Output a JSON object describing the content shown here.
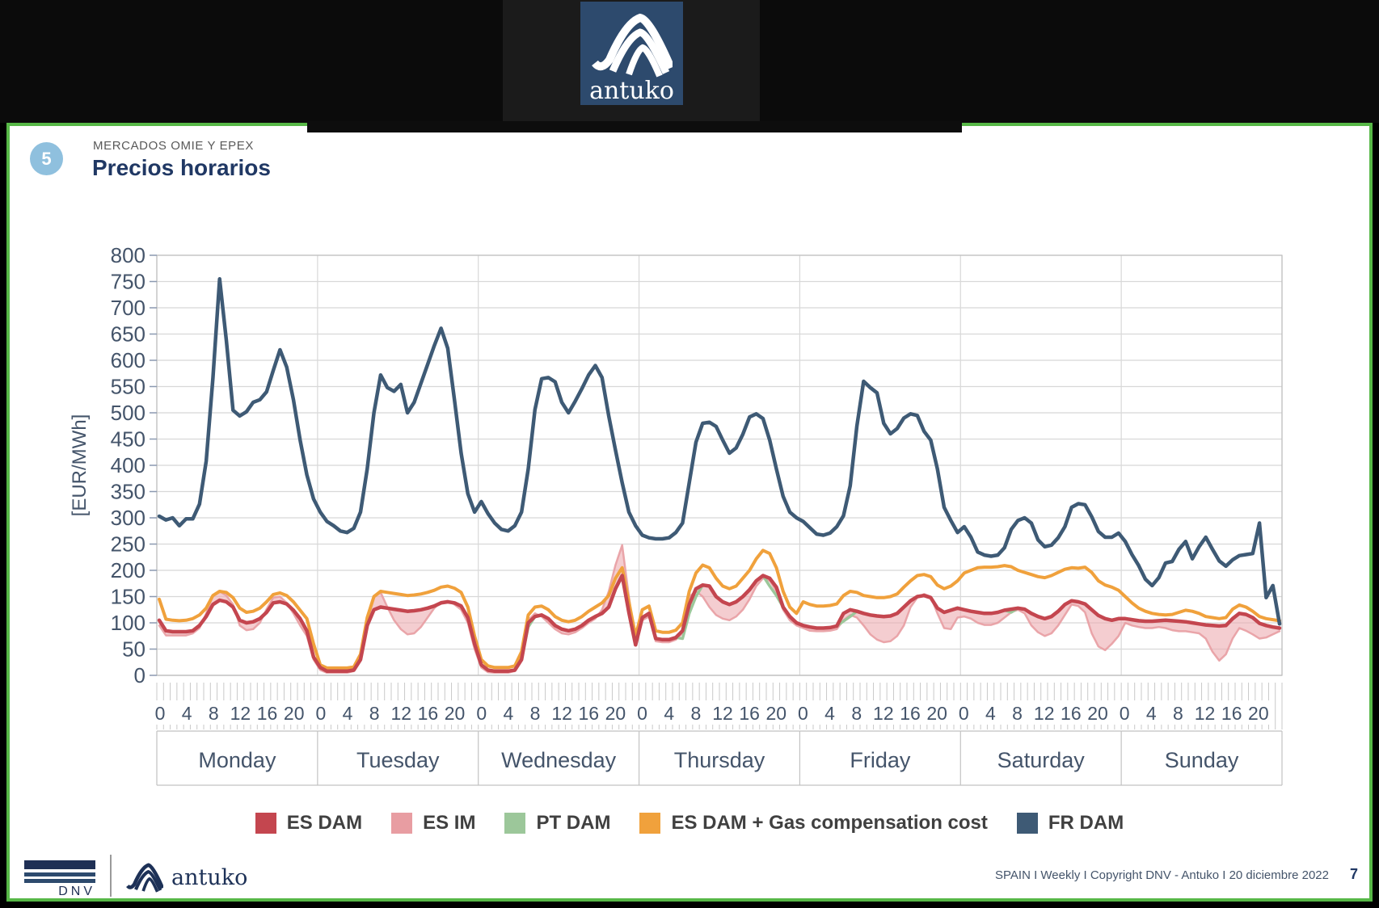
{
  "header": {
    "logo_text": "antuko"
  },
  "slide": {
    "number": "5",
    "kicker": "MERCADOS OMIE Y EPEX",
    "title": "Precios horarios"
  },
  "chart_data": {
    "type": "line",
    "title": "",
    "xlabel": "",
    "ylabel": "[EUR/MWh]",
    "ylim": [
      0,
      800
    ],
    "ytick_step": 50,
    "grid": true,
    "legend_position": "bottom",
    "days": [
      "Monday",
      "Tuesday",
      "Wednesday",
      "Thursday",
      "Friday",
      "Saturday",
      "Sunday"
    ],
    "hours_per_day": 24,
    "hour_tick_labels": [
      0,
      4,
      8,
      12,
      16,
      20
    ],
    "series": [
      {
        "name": "ES DAM",
        "color": "#c4464f",
        "values": [
          105,
          85,
          83,
          83,
          83,
          85,
          95,
          112,
          135,
          143,
          140,
          130,
          105,
          100,
          102,
          108,
          120,
          138,
          140,
          136,
          124,
          108,
          85,
          35,
          15,
          8,
          8,
          8,
          8,
          10,
          30,
          95,
          125,
          130,
          128,
          126,
          124,
          122,
          123,
          125,
          128,
          132,
          138,
          140,
          138,
          132,
          110,
          60,
          20,
          10,
          8,
          8,
          8,
          10,
          30,
          100,
          112,
          115,
          108,
          95,
          88,
          85,
          88,
          95,
          105,
          112,
          118,
          130,
          165,
          190,
          120,
          58,
          110,
          118,
          70,
          68,
          68,
          72,
          85,
          135,
          165,
          172,
          170,
          150,
          140,
          135,
          140,
          150,
          163,
          180,
          190,
          185,
          168,
          130,
          112,
          100,
          95,
          92,
          90,
          90,
          91,
          94,
          118,
          125,
          122,
          118,
          115,
          113,
          112,
          113,
          118,
          130,
          142,
          150,
          152,
          148,
          128,
          120,
          124,
          128,
          125,
          122,
          120,
          118,
          118,
          120,
          124,
          126,
          128,
          126,
          118,
          112,
          108,
          112,
          122,
          135,
          142,
          140,
          136,
          125,
          114,
          108,
          105,
          108,
          108,
          106,
          104,
          103,
          103,
          104,
          105,
          104,
          103,
          102,
          100,
          98,
          96,
          95,
          94,
          95,
          108,
          118,
          116,
          110,
          99,
          95,
          92,
          90
        ]
      },
      {
        "name": "ES IM",
        "color": "#e89da2",
        "band_fill": "#edacb0",
        "band_with": "ES DAM",
        "values": [
          95,
          76,
          76,
          76,
          76,
          80,
          90,
          118,
          152,
          160,
          152,
          135,
          95,
          86,
          88,
          100,
          126,
          148,
          150,
          138,
          118,
          95,
          75,
          30,
          10,
          5,
          5,
          5,
          5,
          8,
          28,
          100,
          150,
          158,
          130,
          105,
          88,
          78,
          80,
          92,
          110,
          128,
          140,
          142,
          135,
          125,
          100,
          50,
          15,
          6,
          5,
          5,
          5,
          8,
          28,
          105,
          118,
          112,
          100,
          88,
          80,
          78,
          82,
          90,
          100,
          108,
          125,
          160,
          210,
          248,
          150,
          62,
          105,
          112,
          65,
          63,
          63,
          68,
          80,
          150,
          160,
          150,
          130,
          115,
          108,
          105,
          112,
          125,
          145,
          170,
          185,
          180,
          160,
          125,
          105,
          95,
          90,
          85,
          84,
          84,
          85,
          88,
          105,
          115,
          110,
          95,
          78,
          68,
          63,
          65,
          75,
          95,
          130,
          148,
          155,
          150,
          118,
          90,
          88,
          110,
          112,
          108,
          100,
          96,
          96,
          100,
          110,
          120,
          125,
          118,
          95,
          82,
          75,
          80,
          95,
          115,
          135,
          132,
          120,
          80,
          55,
          48,
          60,
          75,
          100,
          95,
          92,
          90,
          90,
          92,
          90,
          86,
          84,
          84,
          82,
          80,
          70,
          45,
          28,
          40,
          70,
          90,
          85,
          78,
          70,
          72,
          78,
          84
        ]
      },
      {
        "name": "PT DAM",
        "color": "#9cc79a",
        "values": [
          105,
          85,
          83,
          83,
          83,
          85,
          95,
          112,
          135,
          143,
          140,
          130,
          105,
          100,
          102,
          108,
          120,
          138,
          140,
          136,
          124,
          108,
          85,
          35,
          15,
          8,
          8,
          8,
          8,
          10,
          30,
          95,
          125,
          130,
          128,
          126,
          124,
          122,
          123,
          125,
          128,
          132,
          138,
          140,
          138,
          132,
          110,
          60,
          20,
          10,
          8,
          8,
          8,
          10,
          30,
          92,
          112,
          115,
          108,
          95,
          88,
          85,
          88,
          95,
          105,
          112,
          118,
          130,
          165,
          190,
          120,
          58,
          110,
          118,
          70,
          68,
          68,
          72,
          70,
          118,
          150,
          172,
          170,
          150,
          140,
          135,
          140,
          150,
          163,
          180,
          190,
          170,
          152,
          130,
          112,
          100,
          95,
          92,
          90,
          90,
          91,
          94,
          103,
          112,
          122,
          118,
          115,
          113,
          112,
          113,
          118,
          130,
          142,
          150,
          152,
          148,
          128,
          120,
          124,
          128,
          125,
          122,
          120,
          118,
          118,
          120,
          124,
          120,
          128,
          126,
          118,
          112,
          108,
          112,
          122,
          135,
          142,
          140,
          136,
          125,
          114,
          108,
          105,
          108,
          108,
          106,
          104,
          103,
          103,
          104,
          105,
          104,
          103,
          102,
          100,
          98,
          96,
          95,
          94,
          95,
          108,
          118,
          116,
          110,
          99,
          95,
          92,
          90
        ]
      },
      {
        "name": "ES DAM + Gas compensation cost",
        "color": "#f0a13c",
        "values": [
          145,
          107,
          105,
          104,
          105,
          108,
          115,
          128,
          152,
          160,
          158,
          148,
          128,
          120,
          122,
          128,
          140,
          154,
          157,
          152,
          140,
          124,
          108,
          60,
          20,
          14,
          14,
          14,
          14,
          16,
          40,
          110,
          150,
          160,
          158,
          156,
          154,
          152,
          153,
          155,
          158,
          162,
          168,
          170,
          166,
          158,
          130,
          75,
          30,
          18,
          15,
          15,
          15,
          18,
          45,
          115,
          130,
          132,
          125,
          112,
          105,
          102,
          105,
          112,
          122,
          130,
          138,
          152,
          185,
          205,
          140,
          75,
          125,
          132,
          85,
          82,
          82,
          86,
          100,
          160,
          195,
          210,
          205,
          185,
          170,
          165,
          170,
          185,
          200,
          222,
          238,
          232,
          205,
          160,
          130,
          118,
          140,
          135,
          132,
          132,
          133,
          136,
          152,
          160,
          158,
          152,
          150,
          148,
          148,
          150,
          155,
          168,
          180,
          190,
          192,
          188,
          172,
          165,
          170,
          180,
          195,
          200,
          205,
          206,
          206,
          207,
          209,
          207,
          200,
          196,
          192,
          188,
          186,
          190,
          196,
          202,
          205,
          204,
          206,
          196,
          180,
          172,
          168,
          162,
          150,
          138,
          128,
          122,
          118,
          116,
          115,
          116,
          120,
          124,
          122,
          118,
          112,
          110,
          108,
          110,
          126,
          134,
          130,
          122,
          112,
          108,
          106,
          104
        ]
      },
      {
        "name": "FR DAM",
        "color": "#3e5a75",
        "values": [
          303,
          296,
          300,
          285,
          298,
          298,
          326,
          408,
          566,
          755,
          638,
          505,
          494,
          502,
          520,
          525,
          540,
          581,
          620,
          587,
          525,
          448,
          382,
          336,
          311,
          293,
          285,
          275,
          272,
          280,
          311,
          393,
          500,
          572,
          548,
          541,
          554,
          500,
          520,
          556,
          592,
          628,
          661,
          623,
          525,
          423,
          346,
          311,
          331,
          308,
          290,
          278,
          275,
          285,
          311,
          393,
          506,
          565,
          567,
          559,
          520,
          500,
          522,
          546,
          572,
          590,
          567,
          494,
          429,
          367,
          311,
          285,
          267,
          262,
          260,
          260,
          262,
          272,
          290,
          367,
          444,
          480,
          482,
          474,
          448,
          423,
          433,
          459,
          492,
          498,
          489,
          448,
          393,
          341,
          311,
          300,
          293,
          281,
          269,
          267,
          271,
          283,
          304,
          361,
          475,
          560,
          548,
          538,
          480,
          460,
          470,
          490,
          498,
          495,
          465,
          448,
          393,
          320,
          295,
          272,
          283,
          263,
          235,
          229,
          227,
          229,
          243,
          278,
          295,
          300,
          290,
          258,
          245,
          248,
          262,
          283,
          320,
          327,
          325,
          302,
          274,
          263,
          263,
          271,
          255,
          230,
          209,
          183,
          171,
          186,
          214,
          217,
          240,
          255,
          222,
          245,
          263,
          240,
          218,
          208,
          220,
          228,
          230,
          232,
          290,
          148,
          171,
          98
        ]
      }
    ]
  },
  "footer": {
    "dnv_label": "DNV",
    "antuko_label": "antuko",
    "copyright": "SPAIN I Weekly I Copyright DNV - Antuko I 20 diciembre 2022",
    "page_number": "7"
  }
}
